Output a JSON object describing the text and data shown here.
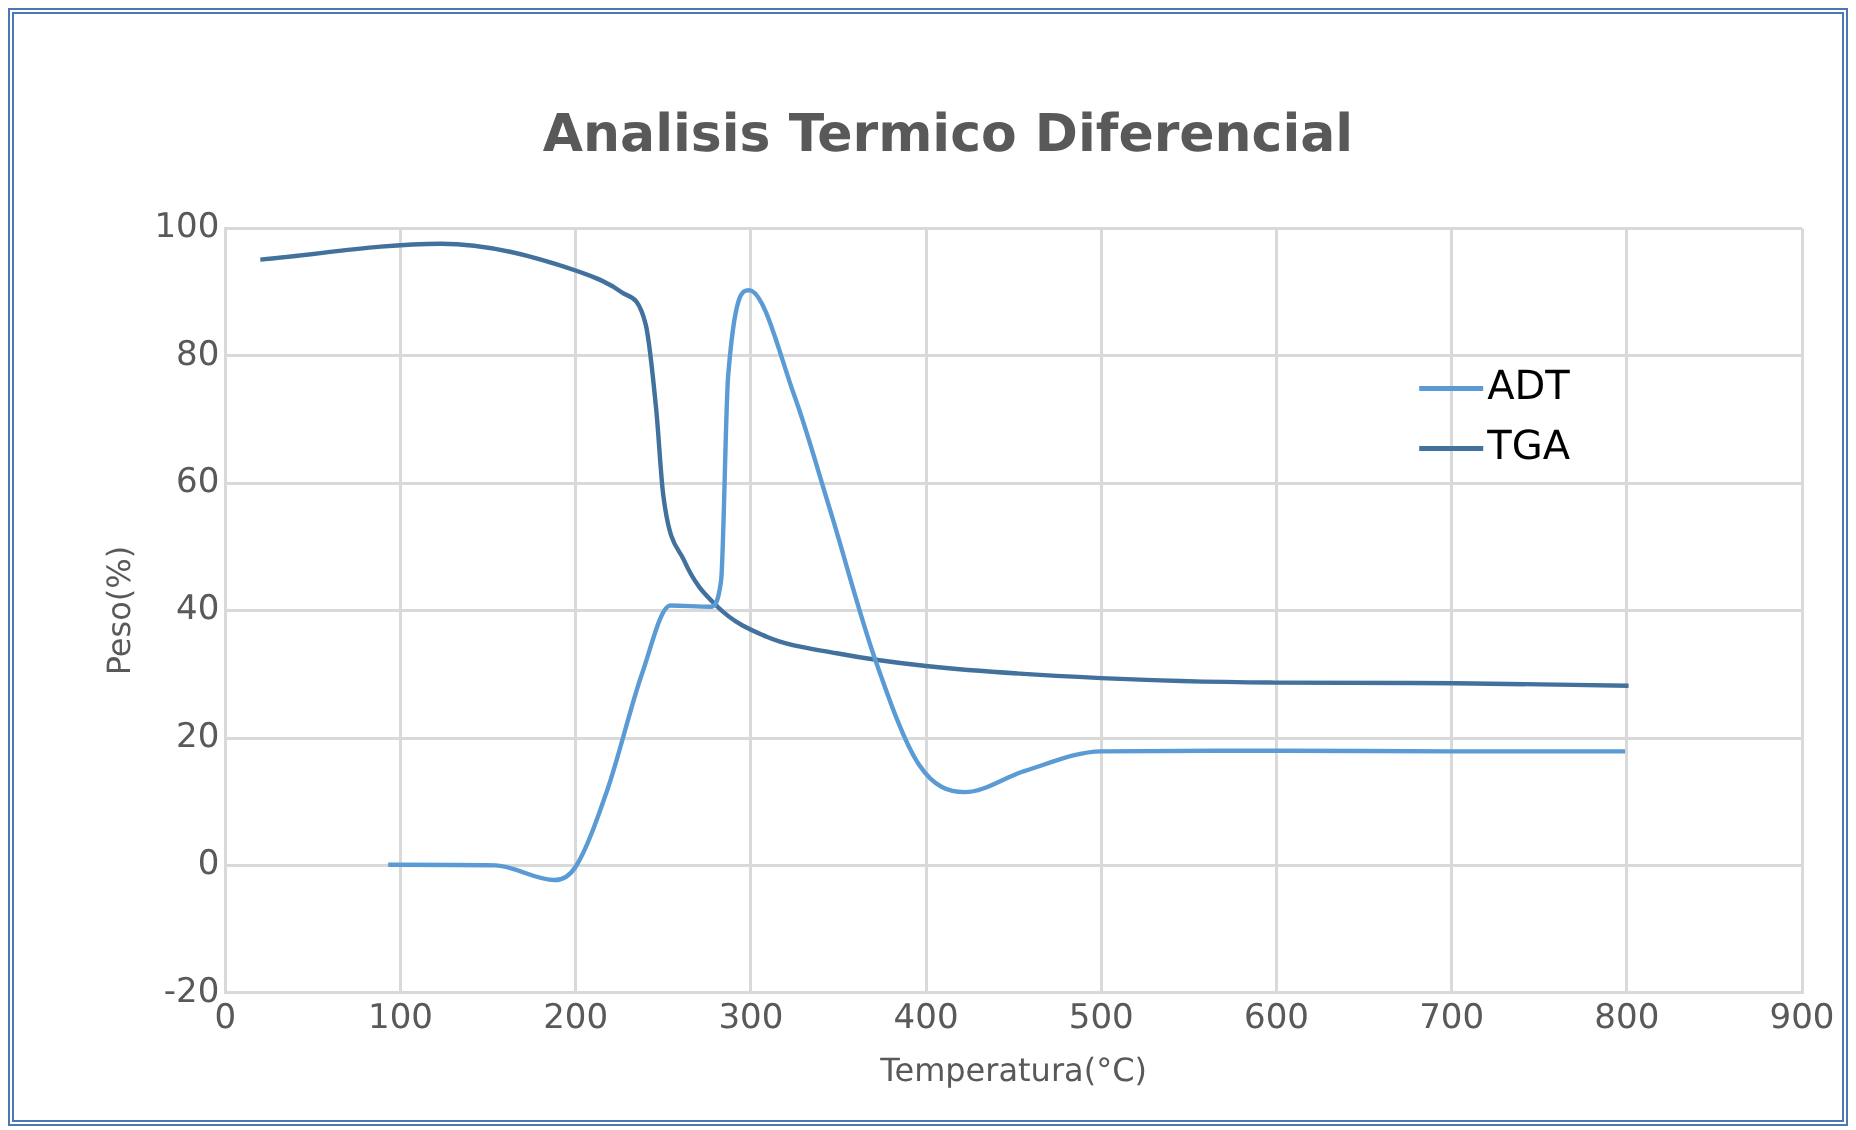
{
  "chart_data": {
    "type": "line",
    "title": "Analisis Termico Diferencial",
    "xlabel": "Temperatura(°C)",
    "ylabel": "Peso(%)",
    "xlim": [
      0,
      900
    ],
    "xticks": [
      0,
      100,
      200,
      300,
      400,
      500,
      600,
      700,
      800,
      900
    ],
    "ylim": [
      -20,
      100
    ],
    "yticks": [
      -20,
      0,
      20,
      40,
      60,
      80,
      100
    ],
    "grid": true,
    "legend": "top right",
    "marker": "none",
    "line_style": "solid",
    "series": [
      {
        "name": "ADT",
        "color": "#5b9bd5",
        "x": [
          93,
          154,
          188,
          200,
          218,
          238,
          254,
          277,
          283,
          287,
          299,
          325,
          345,
          371,
          396,
          422,
          456,
          500,
          600,
          700,
          799
        ],
        "values": [
          0.1,
          0,
          -2.3,
          -0.2,
          11.8,
          30.2,
          40.8,
          40.6,
          44.7,
          76.7,
          90.3,
          73.6,
          56,
          32.3,
          15.8,
          11.5,
          14.8,
          17.9,
          18,
          17.9,
          17.9
        ]
      },
      {
        "name": "TGA",
        "color": "#41719c",
        "x": [
          20,
          123,
          202,
          226,
          240,
          246,
          250,
          262,
          281,
          309,
          349,
          400,
          500,
          599,
          702,
          801
        ],
        "values": [
          95.1,
          97.6,
          93.2,
          90,
          84.9,
          71.5,
          58.1,
          47.8,
          40.6,
          35.9,
          33.3,
          31.3,
          29.4,
          28.7,
          28.6,
          28.2
        ]
      }
    ]
  }
}
